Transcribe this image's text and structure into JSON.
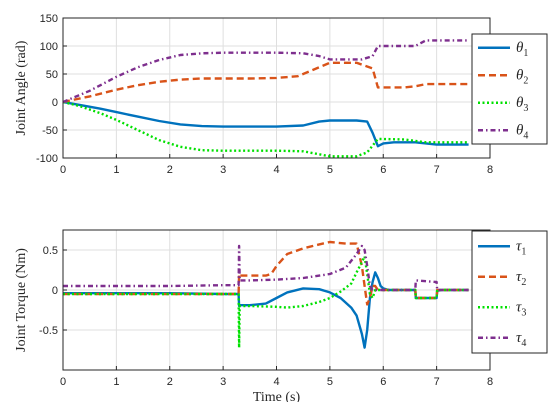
{
  "colors": {
    "series1": "#0072BD",
    "series2": "#D95319",
    "series3": "#00E000",
    "series4": "#7E2F8E",
    "axis": "#262626",
    "grid": "#dfdfdf"
  },
  "chart_data": [
    {
      "type": "line",
      "title": "",
      "xlabel": "",
      "ylabel": "Joint Angle (rad)",
      "xlim": [
        0,
        8
      ],
      "ylim": [
        -100,
        150
      ],
      "xticks": [
        0,
        1,
        2,
        3,
        4,
        5,
        6,
        7,
        8
      ],
      "yticks": [
        -100,
        -50,
        0,
        50,
        100,
        150
      ],
      "grid": true,
      "legend_position": "right",
      "series": [
        {
          "name": "θ1",
          "sym": "θ",
          "sub": "1",
          "style": "solid",
          "x": [
            0,
            0.3,
            0.7,
            1.0,
            1.4,
            1.8,
            2.2,
            2.6,
            3.0,
            3.4,
            4.0,
            4.5,
            4.8,
            5.0,
            5.5,
            5.7,
            5.8,
            5.9,
            6.0,
            6.2,
            6.6,
            6.8,
            7.0,
            7.6
          ],
          "y": [
            0,
            -5,
            -12,
            -18,
            -26,
            -34,
            -40,
            -43,
            -44,
            -44,
            -44,
            -42,
            -35,
            -33,
            -33,
            -35,
            -55,
            -79,
            -74,
            -72,
            -72,
            -74,
            -76,
            -76
          ]
        },
        {
          "name": "θ2",
          "sym": "θ",
          "sub": "2",
          "style": "dashed",
          "x": [
            0,
            0.5,
            1.0,
            1.4,
            1.8,
            2.2,
            2.6,
            3.0,
            3.5,
            4.0,
            4.4,
            4.7,
            5.0,
            5.5,
            5.8,
            5.9,
            6.0,
            6.4,
            6.6,
            6.8,
            7.6
          ],
          "y": [
            0,
            10,
            22,
            30,
            36,
            40,
            42,
            42,
            42,
            43,
            46,
            58,
            70,
            70,
            60,
            26,
            26,
            26,
            28,
            32,
            32
          ]
        },
        {
          "name": "θ3",
          "sym": "θ",
          "sub": "3",
          "style": "dotted",
          "x": [
            0,
            0.3,
            0.7,
            1.0,
            1.4,
            1.8,
            2.2,
            2.6,
            3.0,
            3.5,
            4.0,
            4.5,
            5.0,
            5.5,
            5.7,
            5.9,
            6.0,
            6.4,
            6.8,
            7.0,
            7.6
          ],
          "y": [
            0,
            -7,
            -20,
            -32,
            -50,
            -68,
            -80,
            -86,
            -87,
            -87,
            -87,
            -88,
            -97,
            -97,
            -90,
            -66,
            -66,
            -67,
            -72,
            -72,
            -72
          ]
        },
        {
          "name": "θ4",
          "sym": "θ",
          "sub": "4",
          "style": "dashdot",
          "x": [
            0,
            0.5,
            1.0,
            1.4,
            1.8,
            2.2,
            2.6,
            3.0,
            3.5,
            4.0,
            4.5,
            4.8,
            5.0,
            5.6,
            5.8,
            5.9,
            6.0,
            6.6,
            6.8,
            7.6
          ],
          "y": [
            0,
            20,
            45,
            62,
            75,
            84,
            87,
            88,
            88,
            88,
            87,
            82,
            76,
            76,
            82,
            100,
            100,
            100,
            110,
            110
          ]
        }
      ]
    },
    {
      "type": "line",
      "title": "",
      "xlabel": "Time (s)",
      "ylabel": "Joint Torque (Nm)",
      "xlim": [
        0,
        8
      ],
      "ylim": [
        -1,
        0.75
      ],
      "xticks": [
        0,
        1,
        2,
        3,
        4,
        5,
        6,
        7,
        8
      ],
      "yticks": [
        -0.5,
        0,
        0.5
      ],
      "grid": true,
      "legend_position": "right",
      "series": [
        {
          "name": "τ1",
          "sym": "τ",
          "sub": "1",
          "style": "solid",
          "x": [
            0,
            1,
            2,
            3,
            3.29,
            3.3,
            3.31,
            3.5,
            3.8,
            4.0,
            4.2,
            4.5,
            4.8,
            5.0,
            5.2,
            5.4,
            5.5,
            5.6,
            5.65,
            5.7,
            5.75,
            5.8,
            5.85,
            5.9,
            5.95,
            6.0,
            6.1,
            6.3,
            6.6,
            6.61,
            6.8,
            7.0,
            7.01,
            7.1,
            7.6
          ],
          "y": [
            -0.04,
            -0.04,
            -0.04,
            -0.05,
            -0.05,
            -0.2,
            -0.19,
            -0.19,
            -0.17,
            -0.1,
            -0.03,
            0.02,
            0.01,
            -0.03,
            -0.1,
            -0.22,
            -0.32,
            -0.55,
            -0.72,
            -0.5,
            -0.1,
            0.1,
            0.22,
            0.15,
            0.05,
            0.02,
            0.0,
            0.0,
            0.0,
            -0.1,
            -0.1,
            -0.1,
            -0.01,
            0.0,
            0.0
          ]
        },
        {
          "name": "τ2",
          "sym": "τ",
          "sub": "2",
          "style": "dashed",
          "x": [
            0,
            1,
            2,
            3,
            3.29,
            3.3,
            3.31,
            3.5,
            3.8,
            3.9,
            4.0,
            4.2,
            4.5,
            4.8,
            5.0,
            5.3,
            5.5,
            5.6,
            5.65,
            5.7,
            5.75,
            5.8,
            5.85,
            5.9,
            6.0,
            6.6,
            6.61,
            7.0,
            7.01,
            7.6
          ],
          "y": [
            -0.05,
            -0.05,
            -0.05,
            -0.05,
            -0.05,
            0.2,
            0.18,
            0.18,
            0.18,
            0.2,
            0.3,
            0.45,
            0.52,
            0.57,
            0.6,
            0.58,
            0.58,
            0.3,
            0.05,
            -0.18,
            -0.1,
            0.05,
            0.05,
            0.0,
            0.0,
            0.0,
            -0.1,
            -0.1,
            0.0,
            0.0
          ]
        },
        {
          "name": "τ3",
          "sym": "τ",
          "sub": "3",
          "style": "dotted",
          "x": [
            0,
            1,
            2,
            3,
            3.29,
            3.3,
            3.31,
            3.35,
            3.5,
            4.0,
            4.2,
            4.5,
            4.8,
            5.0,
            5.2,
            5.4,
            5.5,
            5.6,
            5.65,
            5.7,
            5.75,
            5.8,
            5.85,
            5.9,
            6.0,
            6.6,
            6.61,
            7.0,
            7.01,
            7.6
          ],
          "y": [
            -0.05,
            -0.05,
            -0.05,
            -0.05,
            -0.05,
            -0.72,
            -0.2,
            -0.2,
            -0.2,
            -0.21,
            -0.22,
            -0.2,
            -0.15,
            -0.1,
            -0.02,
            0.08,
            0.22,
            0.35,
            0.42,
            0.2,
            -0.05,
            -0.1,
            0.0,
            0.0,
            0.0,
            0.0,
            -0.1,
            -0.1,
            0.0,
            0.0
          ]
        },
        {
          "name": "τ4",
          "sym": "τ",
          "sub": "4",
          "style": "dashdot",
          "x": [
            0,
            1,
            2,
            3,
            3.29,
            3.3,
            3.31,
            3.35,
            3.5,
            4.0,
            4.5,
            5.0,
            5.3,
            5.5,
            5.6,
            5.65,
            5.7,
            5.75,
            5.8,
            5.85,
            5.9,
            6.0,
            6.6,
            6.61,
            7.0,
            7.01,
            7.6
          ],
          "y": [
            0.05,
            0.05,
            0.05,
            0.06,
            0.06,
            0.55,
            0.12,
            0.12,
            0.12,
            0.13,
            0.15,
            0.2,
            0.28,
            0.45,
            0.55,
            0.5,
            0.3,
            0.05,
            0.0,
            0.0,
            0.0,
            0.0,
            0.0,
            0.12,
            0.1,
            0.0,
            0.0
          ]
        }
      ]
    }
  ]
}
